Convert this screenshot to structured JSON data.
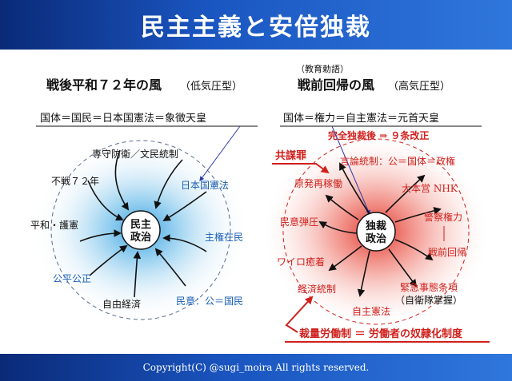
{
  "header": {
    "title": "民主主義と安倍独裁"
  },
  "footer": {
    "copyright": "Copyright(C) @sugi_moira All rights reserved."
  },
  "left": {
    "title": "戦後平和７２年の風",
    "subtitle": "（低気圧型）",
    "formula": "国体＝国民＝日本国憲法＝象徴天皇",
    "center_line1": "民主",
    "center_line2": "政治",
    "labels": {
      "senshu": "専守防衛／文民統制",
      "fusen": "不戦７２年",
      "heiwa": "平和・護憲",
      "kohei": "公平公正",
      "jiyu": "自由経済",
      "kenpo": "日本国憲法",
      "shuken": "主権在民",
      "mini": "民意：公＝国民"
    }
  },
  "right": {
    "note": "（教育勅語）",
    "title": "戦前回帰の風",
    "subtitle": "（高気圧型）",
    "formula": "国体＝権力＝自主憲法＝元首天皇",
    "kaisei": "完全独裁後 ⇒ ９条改正",
    "kyobozai": "共謀罪",
    "center_line1": "独裁",
    "center_line2": "政治",
    "labels": {
      "genron": "言論統制：公＝国体＝政権",
      "genpatsu": "原発再稼働",
      "daihonei": "大本営 NHK",
      "danatsu": "民意弾圧",
      "keisatsu": "警察権力",
      "kaiki": "戦前回帰",
      "wairo": "ワイロ癒着",
      "keizai": "経済統制",
      "kinkyu1": "緊急事態条項",
      "kinkyu2": "（自衛隊掌握）",
      "jishu": "自主憲法"
    },
    "bottom": "裁量労働制 ＝ 労働者の奴隷化制度"
  },
  "colors": {
    "header": "#1a55c0",
    "blue_text": "#1a5fb4",
    "red_text": "#d0201c",
    "arrow_blue": "#2a3aa8",
    "arrow_red": "#d0201c"
  }
}
